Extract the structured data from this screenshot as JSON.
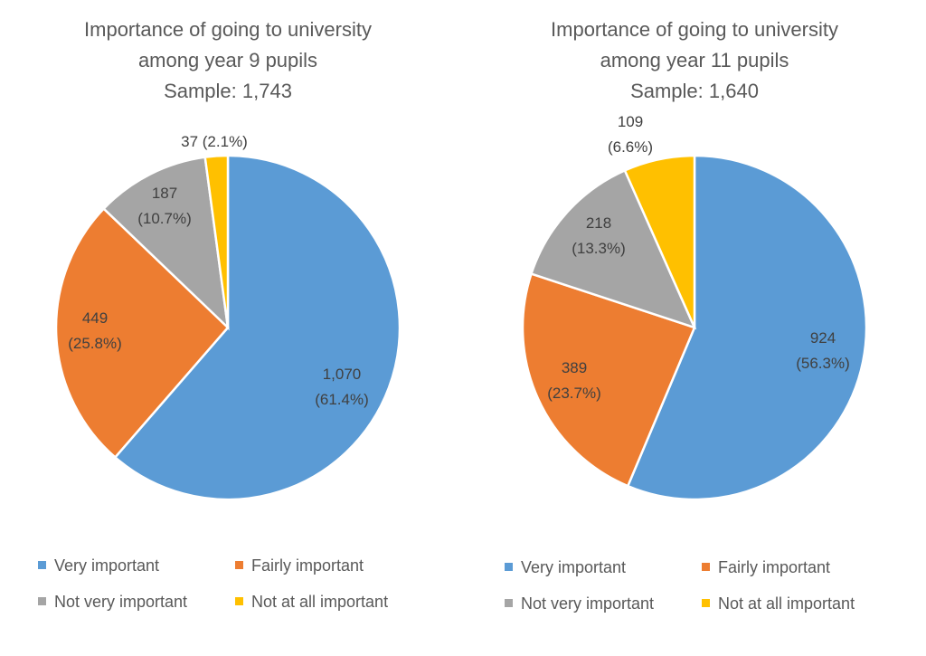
{
  "chart_data": [
    {
      "type": "pie",
      "title": [
        "Importance of going to university",
        "among year 9 pupils",
        "Sample: 1,743"
      ],
      "categories": [
        "Very important",
        "Fairly important",
        "Not very important",
        "Not at all important"
      ],
      "values": [
        1070,
        449,
        187,
        37
      ],
      "data_labels": [
        [
          "1,070",
          "(61.4%)"
        ],
        [
          "449",
          "(25.8%)"
        ],
        [
          "187",
          "(10.7%)"
        ],
        [
          "37 (2.1%)"
        ]
      ],
      "colors": [
        "#5B9BD5",
        "#ED7D31",
        "#A5A5A5",
        "#FFC000"
      ],
      "start_angle": "top, clockwise",
      "legend_position": "bottom"
    },
    {
      "type": "pie",
      "title": [
        "Importance of going to university",
        "among year 11 pupils",
        "Sample: 1,640"
      ],
      "categories": [
        "Very important",
        "Fairly important",
        "Not very important",
        "Not at all important"
      ],
      "values": [
        924,
        389,
        218,
        109
      ],
      "data_labels": [
        [
          "924",
          "(56.3%)"
        ],
        [
          "389",
          "(23.7%)"
        ],
        [
          "218",
          "(13.3%)"
        ],
        [
          "109",
          "(6.6%)"
        ]
      ],
      "colors": [
        "#5B9BD5",
        "#ED7D31",
        "#A5A5A5",
        "#FFC000"
      ],
      "start_angle": "top, clockwise",
      "legend_position": "bottom"
    }
  ]
}
